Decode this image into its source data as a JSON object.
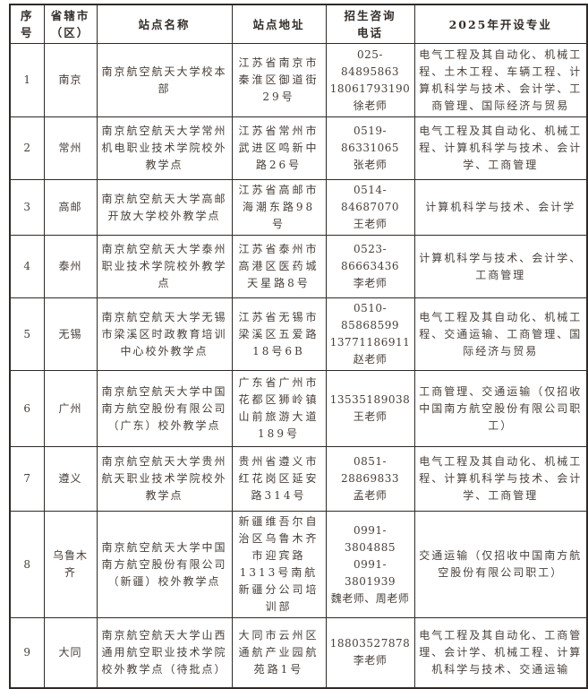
{
  "table": {
    "headers": {
      "seq": "序号",
      "city": "省辖市\n（区）",
      "site": "站点名称",
      "address": "站点地址",
      "phone": "招生咨询\n电话",
      "majors": "2025年开设专业"
    },
    "rows": [
      {
        "seq": "1",
        "city": "南京",
        "site": "南京航空航天大学校本部",
        "address": "江苏省南京市秦淮区御道街29号",
        "phone": "025-84895863\n18061793190\n徐老师",
        "majors": "电气工程及其自动化、机械工程、土木工程、车辆工程、计算机科学与技术、会计学、工商管理、国际经济与贸易"
      },
      {
        "seq": "2",
        "city": "常州",
        "site": "南京航空航天大学常州机电职业技术学院校外教学点",
        "address": "江苏省常州市武进区鸣新中路26号",
        "phone": "0519-86331065\n张老师",
        "majors": "电气工程及其自动化、机械工程、计算机科学与技术、会计学、工商管理"
      },
      {
        "seq": "3",
        "city": "高邮",
        "site": "南京航空航天大学高邮开放大学校外教学点",
        "address": "江苏省高邮市海潮东路98号",
        "phone": "0514-84687070\n王老师",
        "majors": "计算机科学与技术、会计学"
      },
      {
        "seq": "4",
        "city": "泰州",
        "site": "南京航空航天大学泰州职业技术学院校外教学点",
        "address": "江苏省泰州市高港区医药城天星路8号",
        "phone": "0523-86663436\n李老师",
        "majors": "计算机科学与技术、会计学、工商管理"
      },
      {
        "seq": "5",
        "city": "无锡",
        "site": "南京航空航天大学无锡市梁溪区时政教育培训中心校外教学点",
        "address": "江苏省无锡市梁溪区五爱路18号6B",
        "phone": "0510-85868599\n13771186911\n赵老师",
        "majors": "电气工程及其自动化、机械工程、交通运输、工商管理、国际经济与贸易"
      },
      {
        "seq": "6",
        "city": "广州",
        "site": "南京航空航天大学中国南方航空股份有限公司（广东）校外教学点",
        "address": "广东省广州市花都区狮岭镇山前旅游大道189号",
        "phone": "13535189038\n王老师",
        "majors": "工商管理、交通运输（仅招收中国南方航空股份有限公司职工）"
      },
      {
        "seq": "7",
        "city": "遵义",
        "site": "南京航空航天大学贵州航天职业技术学院校外教学点",
        "address": "贵州省遵义市红花岗区延安路314号",
        "phone": "0851-28869833\n孟老师",
        "majors": "电气工程及其自动化、机械工程、计算机科学与技术、会计学、工商管理"
      },
      {
        "seq": "8",
        "city": "乌鲁木齐",
        "site": "南京航空航天大学中国南方航空股份有限公司（新疆）校外教学点",
        "address": "新疆维吾尔自治区乌鲁木齐市迎宾路1313号南航新疆分公司培训部",
        "phone": "0991-3804885\n0991-3801939\n魏老师、周老师",
        "majors": "交通运输（仅招收中国南方航空股份有限公司职工）"
      },
      {
        "seq": "9",
        "city": "大同",
        "site": "南京航空航天大学山西通用航空职业技术学院校外教学点（待批点）",
        "address": "大同市云州区通航产业园航苑路1号",
        "phone": "18803527878\n李老师",
        "majors": "电气工程及其自动化、工商管理、会计学、机械工程、计算机科学与技术、交通运输"
      }
    ]
  },
  "colors": {
    "text": "#473e38",
    "header_text": "#332d29",
    "border": "#2f2a27",
    "background": "#ffffff"
  }
}
